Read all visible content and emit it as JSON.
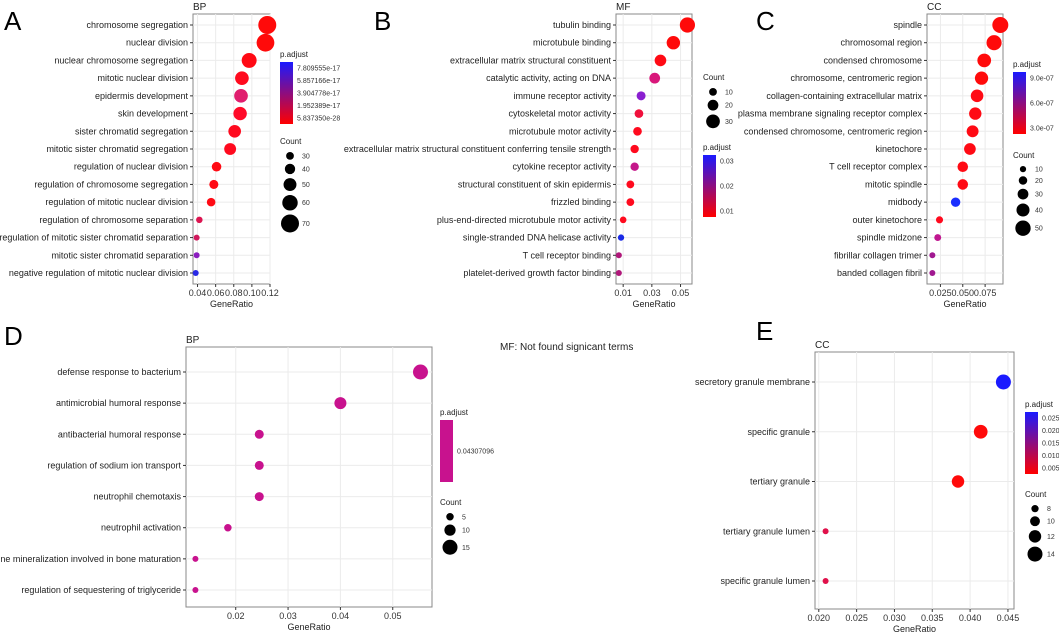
{
  "note": "MF: Not found signicant terms",
  "chart_data": [
    {
      "type": "scatter",
      "panel": "A",
      "title": "BP",
      "xlabel": "GeneRatio",
      "xlim": [
        0.035,
        0.12
      ],
      "xticks": [
        0.04,
        0.06,
        0.08,
        0.1,
        0.12
      ],
      "xtick_labels": [
        "0.04",
        "0.06",
        "0.08",
        "0.10",
        "0.12"
      ],
      "terms": [
        "chromosome segregation",
        "nuclear division",
        "nuclear chromosome segregation",
        "mitotic nuclear division",
        "epidermis development",
        "skin development",
        "sister chromatid segregation",
        "mitotic sister chromatid segregation",
        "regulation of nuclear division",
        "regulation of chromosome segregation",
        "regulation of mitotic nuclear division",
        "regulation of chromosome separation",
        "regulation of mitotic sister chromatid separation",
        "mitotic sister chromatid separation",
        "negative regulation of mitotic nuclear division"
      ],
      "gene_ratio": [
        0.117,
        0.115,
        0.097,
        0.089,
        0.088,
        0.087,
        0.081,
        0.076,
        0.061,
        0.058,
        0.055,
        0.042,
        0.039,
        0.039,
        0.038
      ],
      "count": [
        70,
        69,
        58,
        53,
        53,
        52,
        49,
        46,
        37,
        35,
        33,
        25,
        23,
        23,
        23
      ],
      "colors": [
        "#ff0a0a",
        "#ff0a0a",
        "#ff0a14",
        "#ff0a1e",
        "#e01e6e",
        "#ff0a28",
        "#ff0a1e",
        "#ff0a1e",
        "#ff0a14",
        "#ff0a14",
        "#ff0a14",
        "#dc1450",
        "#d0185c",
        "#8c1ec0",
        "#2828e6"
      ],
      "color_legend": {
        "title": "p.adjust",
        "labels": [
          "7.809555e-17",
          "5.857166e-17",
          "3.904778e-17",
          "1.952389e-17",
          "5.837350e-28"
        ],
        "low": "#ff0000",
        "high": "#1a1aff"
      },
      "size_legend": {
        "title": "Count",
        "values": [
          30,
          40,
          50,
          60,
          70
        ]
      }
    },
    {
      "type": "scatter",
      "panel": "B",
      "title": "MF",
      "xlabel": "GeneRatio",
      "xlim": [
        0.005,
        0.058
      ],
      "xticks": [
        0.01,
        0.03,
        0.05
      ],
      "xtick_labels": [
        "0.01",
        "0.03",
        "0.05"
      ],
      "terms": [
        "tubulin binding",
        "microtubule binding",
        "extracellular matrix structural constituent",
        "catalytic activity, acting on DNA",
        "immune receptor activity",
        "cytoskeletal motor activity",
        "microtubule motor activity",
        "extracellular matrix structural constituent conferring tensile strength",
        "cytokine receptor activity",
        "structural constituent of skin epidermis",
        "frizzled binding",
        "plus-end-directed microtubule motor activity",
        "single-stranded DNA helicase activity",
        "T cell receptor binding",
        "platelet-derived growth factor binding"
      ],
      "gene_ratio": [
        0.0548,
        0.045,
        0.036,
        0.032,
        0.0225,
        0.021,
        0.02,
        0.018,
        0.018,
        0.015,
        0.015,
        0.01,
        0.0085,
        0.007,
        0.007
      ],
      "count": [
        35,
        29,
        23,
        20,
        14,
        13,
        13,
        12,
        12,
        10,
        10,
        6,
        5,
        4,
        4
      ],
      "colors": [
        "#ff0a0a",
        "#ff0a0a",
        "#ff0a14",
        "#d8177a",
        "#8a1fd0",
        "#f0103c",
        "#ff0a1e",
        "#ff0a1e",
        "#c4188a",
        "#ff0a1e",
        "#ff0a1e",
        "#ff0a1e",
        "#1a2ae6",
        "#b0187a",
        "#b0187a"
      ],
      "color_legend": {
        "title": "p.adjust",
        "labels": [
          "0.03",
          "0.02",
          "0.01"
        ],
        "low": "#ff0000",
        "high": "#1a1aff"
      },
      "size_legend": {
        "title": "Count",
        "values": [
          10,
          20,
          30
        ]
      }
    },
    {
      "type": "scatter",
      "panel": "C",
      "title": "CC",
      "xlabel": "GeneRatio",
      "xlim": [
        0.01,
        0.095
      ],
      "xticks": [
        0.025,
        0.05,
        0.075
      ],
      "xtick_labels": [
        "0.025",
        "0.050",
        "0.075"
      ],
      "terms": [
        "spindle",
        "chromosomal region",
        "condensed chromosome",
        "chromosome, centromeric region",
        "collagen-containing extracellular matrix",
        "plasma membrane signaling receptor complex",
        "condensed chromosome, centromeric region",
        "kinetochore",
        "T cell receptor complex",
        "mitotic spindle",
        "midbody",
        "outer kinetochore",
        "spindle midzone",
        "fibrillar collagen trimer",
        "banded collagen fibril"
      ],
      "gene_ratio": [
        0.092,
        0.085,
        0.074,
        0.071,
        0.066,
        0.064,
        0.061,
        0.058,
        0.05,
        0.05,
        0.042,
        0.024,
        0.022,
        0.016,
        0.016
      ],
      "count": [
        53,
        49,
        43,
        41,
        38,
        37,
        35,
        34,
        29,
        29,
        24,
        14,
        13,
        9,
        9
      ],
      "colors": [
        "#ff0a0a",
        "#ff0a0a",
        "#ff0a0a",
        "#ff0a0a",
        "#ff0a14",
        "#ff0a14",
        "#ff0a14",
        "#ff0a14",
        "#ff0a14",
        "#ff0a14",
        "#1a2eff",
        "#ff0a1e",
        "#c01890",
        "#a01890",
        "#a01890"
      ],
      "color_legend": {
        "title": "p.adjust",
        "labels": [
          "9.0e-07",
          "6.0e-07",
          "3.0e-07"
        ],
        "low": "#ff0000",
        "high": "#1a1aff"
      },
      "size_legend": {
        "title": "Count",
        "values": [
          10,
          20,
          30,
          40,
          50
        ]
      }
    },
    {
      "type": "scatter",
      "panel": "D",
      "title": "BP",
      "xlabel": "GeneRatio",
      "xlim": [
        0.0105,
        0.0575
      ],
      "xticks": [
        0.02,
        0.03,
        0.04,
        0.05
      ],
      "xtick_labels": [
        "0.02",
        "0.03",
        "0.04",
        "0.05"
      ],
      "terms": [
        "defense response to bacterium",
        "antimicrobial humoral response",
        "antibacterial humoral response",
        "regulation of sodium ion transport",
        "neutrophil chemotaxis",
        "neutrophil activation",
        "bone mineralization involved in bone maturation",
        "regulation of sequestering of triglyceride"
      ],
      "gene_ratio": [
        0.0553,
        0.04,
        0.0245,
        0.0245,
        0.0245,
        0.0185,
        0.0123,
        0.0123
      ],
      "count": [
        15,
        11,
        7,
        7,
        7,
        5,
        3,
        3
      ],
      "colors": [
        "#c8128e",
        "#c8128e",
        "#c8128e",
        "#c8128e",
        "#c8128e",
        "#c8128e",
        "#c8128e",
        "#c8128e"
      ],
      "color_legend": {
        "title": "p.adjust",
        "labels": [
          "0.04307096"
        ],
        "low": "#c8128e",
        "high": "#c8128e"
      },
      "size_legend": {
        "title": "Count",
        "values": [
          5,
          10,
          15
        ]
      }
    },
    {
      "type": "scatter",
      "panel": "E",
      "title": "CC",
      "xlabel": "GeneRatio",
      "xlim": [
        0.0195,
        0.0458
      ],
      "xticks": [
        0.02,
        0.025,
        0.03,
        0.035,
        0.04,
        0.045
      ],
      "xtick_labels": [
        "0.020",
        "0.025",
        "0.030",
        "0.035",
        "0.040",
        "0.045"
      ],
      "terms": [
        "secretory granule membrane",
        "specific granule",
        "tertiary granule",
        "tertiary granule lumen",
        "specific granule lumen"
      ],
      "gene_ratio": [
        0.0444,
        0.0414,
        0.0384,
        0.0209,
        0.0209
      ],
      "count": [
        14,
        13,
        12,
        7,
        7
      ],
      "colors": [
        "#1a1aff",
        "#ff0a0a",
        "#ff0a0a",
        "#e0104a",
        "#e0104a"
      ],
      "color_legend": {
        "title": "p.adjust",
        "labels": [
          "0.025",
          "0.020",
          "0.015",
          "0.010",
          "0.005"
        ],
        "low": "#ff0000",
        "high": "#1a1aff"
      },
      "size_legend": {
        "title": "Count",
        "values": [
          8,
          10,
          12,
          14
        ]
      }
    }
  ]
}
